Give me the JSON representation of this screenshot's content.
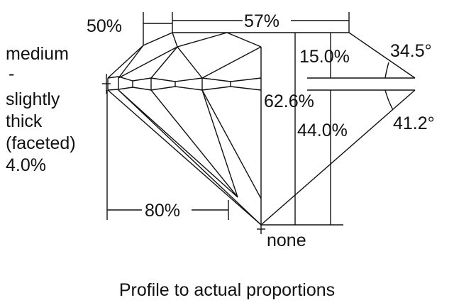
{
  "labels": {
    "crown_height_pct_dim": "50%",
    "table_pct": "57%",
    "crown_height": "15.0%",
    "crown_angle": "34.5°",
    "total_depth": "62.6%",
    "pavilion_depth": "44.0%",
    "pavilion_angle": "41.2°",
    "lower_half_pct": "80%",
    "culet": "none",
    "girdle": [
      "medium",
      "-",
      "slightly",
      "thick",
      "(faceted)",
      "4.0%"
    ]
  },
  "caption": "Profile to actual proportions"
}
